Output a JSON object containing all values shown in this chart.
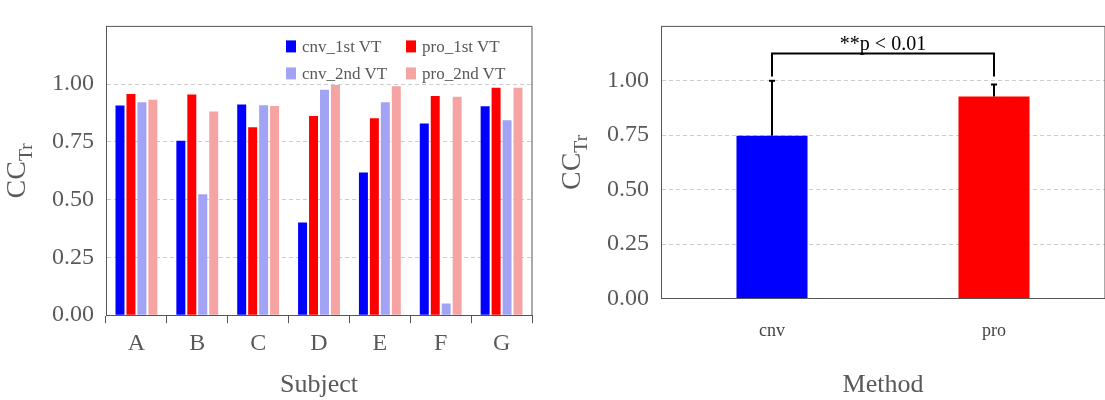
{
  "chart_data": [
    {
      "type": "bar",
      "xlabel": "Subject",
      "ylabel": "CC$_{Tr}$",
      "categories": [
        "A",
        "B",
        "C",
        "D",
        "E",
        "F",
        "G"
      ],
      "series": [
        {
          "name": "cnv_1st VT",
          "color": "#0000ff",
          "values": [
            0.908,
            0.755,
            0.912,
            0.401,
            0.618,
            0.83,
            0.904
          ]
        },
        {
          "name": "pro_1st VT",
          "color": "#ff0000",
          "values": [
            0.957,
            0.955,
            0.813,
            0.862,
            0.852,
            0.949,
            0.984
          ]
        },
        {
          "name": "cnv_2nd VT",
          "color": "#a3a3f5",
          "values": [
            0.922,
            0.523,
            0.909,
            0.976,
            0.922,
            0.051,
            0.844
          ]
        },
        {
          "name": "pro_2nd VT",
          "color": "#f5a3a3",
          "values": [
            0.932,
            0.882,
            0.906,
            0.996,
            0.991,
            0.945,
            0.984
          ]
        }
      ],
      "ylim": [
        0,
        1.25
      ],
      "yticks": [
        {
          "value": 0,
          "label": "0.00"
        },
        {
          "value": 0.25,
          "label": "0.25"
        },
        {
          "value": 0.5,
          "label": "0.50"
        },
        {
          "value": 0.75,
          "label": "0.75"
        },
        {
          "value": 1,
          "label": "1.00"
        }
      ],
      "grid": "y",
      "legend": "top right"
    },
    {
      "type": "bar",
      "xlabel": "Method",
      "ylabel": "CC$_{Tr}$",
      "categories": [
        "cnv",
        "pro"
      ],
      "values": [
        0.748,
        0.928
      ],
      "colors": [
        "#0000ff",
        "#ff0000"
      ],
      "errors": [
        [
          0.748,
          1.0
        ],
        [
          0.928,
          0.983
        ]
      ],
      "annotations": [
        "**p < 0.01"
      ],
      "ylim": [
        0,
        1.25
      ],
      "yticks": [
        {
          "value": 0,
          "label": "0.00"
        },
        {
          "value": 0.25,
          "label": "0.25"
        },
        {
          "value": 0.5,
          "label": "0.50"
        },
        {
          "value": 0.75,
          "label": "0.75"
        },
        {
          "value": 1,
          "label": "1.00"
        }
      ],
      "grid": "y"
    }
  ]
}
